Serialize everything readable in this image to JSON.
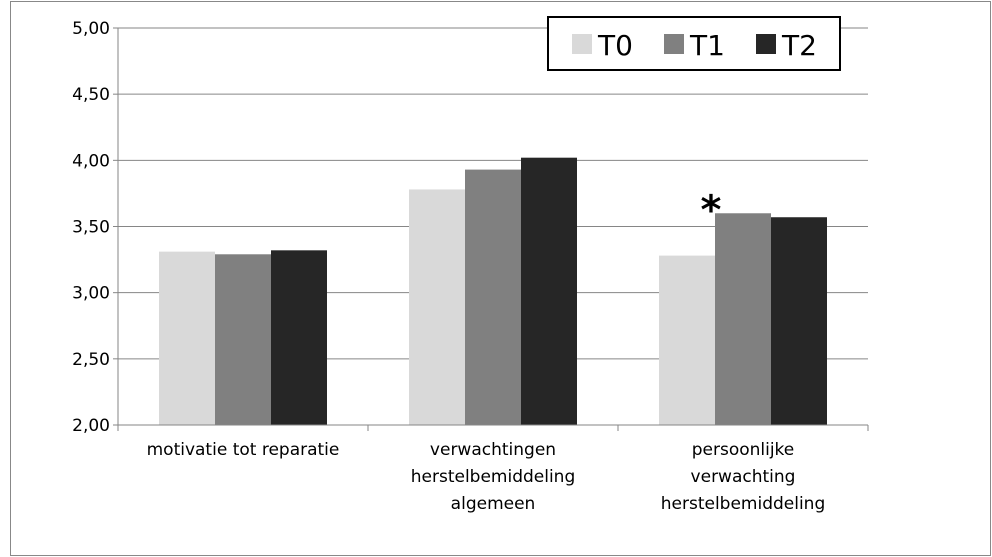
{
  "chart_data": {
    "type": "bar",
    "categories": [
      "motivatie tot reparatie",
      "verwachtingen herstelbemiddeling algemeen",
      "persoonlijke verwachting herstelbemiddeling"
    ],
    "series": [
      {
        "name": "T0",
        "color": "#d9d9d9",
        "values": [
          3.31,
          3.78,
          3.28
        ]
      },
      {
        "name": "T1",
        "color": "#808080",
        "values": [
          3.29,
          3.93,
          3.6
        ]
      },
      {
        "name": "T2",
        "color": "#262626",
        "values": [
          3.32,
          4.02,
          3.57
        ]
      }
    ],
    "ylim": [
      2,
      5
    ],
    "yticks": [
      {
        "value": 2,
        "label": "2,00"
      },
      {
        "value": 2.5,
        "label": "2,50"
      },
      {
        "value": 3,
        "label": "3,00"
      },
      {
        "value": 3.5,
        "label": "3,50"
      },
      {
        "value": 4,
        "label": "4,00"
      },
      {
        "value": 4.5,
        "label": "4,50"
      },
      {
        "value": 5,
        "label": "5,00"
      }
    ],
    "grid": true,
    "legend": "top-right",
    "annotation": "*"
  }
}
